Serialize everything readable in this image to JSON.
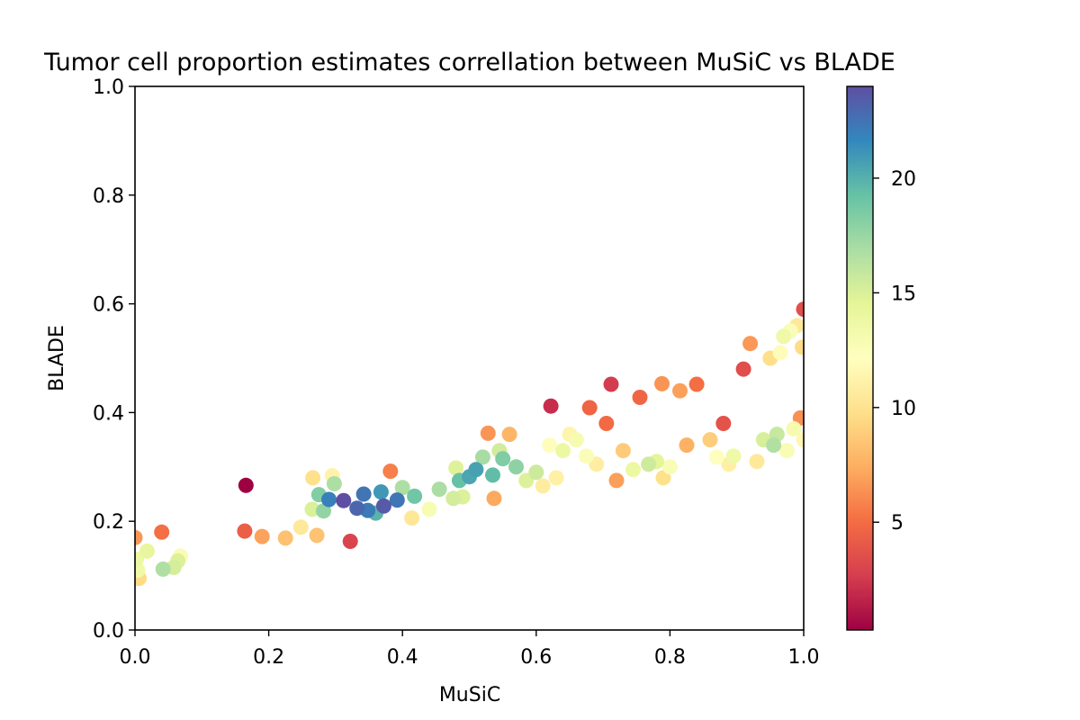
{
  "chart_data": {
    "type": "scatter",
    "title": "Tumor cell proportion estimates correllation between MuSiC vs BLADE",
    "xlabel": "MuSiC",
    "ylabel": "BLADE",
    "xlim": [
      0.0,
      1.0
    ],
    "ylim": [
      0.0,
      1.0
    ],
    "x_ticks": [
      "0.0",
      "0.2",
      "0.4",
      "0.6",
      "0.8",
      "1.0"
    ],
    "y_ticks": [
      "0.0",
      "0.2",
      "0.4",
      "0.6",
      "0.8",
      "1.0"
    ],
    "grid": false,
    "colormap": "Spectral",
    "color_range": [
      0.3,
      24
    ],
    "colorbar_ticks": [
      "5",
      "10",
      "15",
      "20"
    ],
    "colorbar_tick_values": [
      5,
      10,
      15,
      20
    ],
    "points": [
      [
        0.0,
        0.17
      ],
      [
        0.002,
        0.13
      ],
      [
        0.004,
        0.11
      ],
      [
        0.006,
        0.095
      ],
      [
        0.018,
        0.145
      ],
      [
        0.04,
        0.18
      ],
      [
        0.042,
        0.112
      ],
      [
        0.058,
        0.115
      ],
      [
        0.064,
        0.127
      ],
      [
        0.068,
        0.136
      ],
      [
        0.164,
        0.182
      ],
      [
        0.166,
        0.266
      ],
      [
        0.19,
        0.172
      ],
      [
        0.225,
        0.169
      ],
      [
        0.248,
        0.189
      ],
      [
        0.265,
        0.222
      ],
      [
        0.266,
        0.28
      ],
      [
        0.272,
        0.174
      ],
      [
        0.275,
        0.249
      ],
      [
        0.282,
        0.219
      ],
      [
        0.29,
        0.24
      ],
      [
        0.295,
        0.284
      ],
      [
        0.298,
        0.269
      ],
      [
        0.312,
        0.238
      ],
      [
        0.322,
        0.163
      ],
      [
        0.332,
        0.224
      ],
      [
        0.342,
        0.25
      ],
      [
        0.348,
        0.22
      ],
      [
        0.36,
        0.215
      ],
      [
        0.368,
        0.254
      ],
      [
        0.372,
        0.228
      ],
      [
        0.382,
        0.292
      ],
      [
        0.392,
        0.239
      ],
      [
        0.4,
        0.262
      ],
      [
        0.414,
        0.206
      ],
      [
        0.418,
        0.246
      ],
      [
        0.44,
        0.222
      ],
      [
        0.455,
        0.259
      ],
      [
        0.476,
        0.242
      ],
      [
        0.48,
        0.298
      ],
      [
        0.485,
        0.275
      ],
      [
        0.49,
        0.245
      ],
      [
        0.5,
        0.282
      ],
      [
        0.51,
        0.295
      ],
      [
        0.52,
        0.318
      ],
      [
        0.528,
        0.362
      ],
      [
        0.535,
        0.285
      ],
      [
        0.537,
        0.242
      ],
      [
        0.545,
        0.33
      ],
      [
        0.55,
        0.315
      ],
      [
        0.56,
        0.36
      ],
      [
        0.57,
        0.3
      ],
      [
        0.585,
        0.275
      ],
      [
        0.6,
        0.29
      ],
      [
        0.61,
        0.265
      ],
      [
        0.62,
        0.34
      ],
      [
        0.622,
        0.412
      ],
      [
        0.63,
        0.28
      ],
      [
        0.64,
        0.33
      ],
      [
        0.65,
        0.36
      ],
      [
        0.66,
        0.35
      ],
      [
        0.675,
        0.32
      ],
      [
        0.68,
        0.409
      ],
      [
        0.69,
        0.305
      ],
      [
        0.705,
        0.38
      ],
      [
        0.712,
        0.452
      ],
      [
        0.72,
        0.275
      ],
      [
        0.73,
        0.33
      ],
      [
        0.745,
        0.295
      ],
      [
        0.755,
        0.428
      ],
      [
        0.768,
        0.305
      ],
      [
        0.78,
        0.31
      ],
      [
        0.788,
        0.453
      ],
      [
        0.79,
        0.28
      ],
      [
        0.8,
        0.3
      ],
      [
        0.815,
        0.44
      ],
      [
        0.825,
        0.34
      ],
      [
        0.84,
        0.452
      ],
      [
        0.86,
        0.35
      ],
      [
        0.87,
        0.318
      ],
      [
        0.88,
        0.38
      ],
      [
        0.888,
        0.305
      ],
      [
        0.895,
        0.32
      ],
      [
        0.91,
        0.48
      ],
      [
        0.92,
        0.527
      ],
      [
        0.93,
        0.31
      ],
      [
        0.94,
        0.35
      ],
      [
        0.95,
        0.5
      ],
      [
        0.96,
        0.36
      ],
      [
        0.97,
        0.54
      ],
      [
        0.975,
        0.33
      ],
      [
        0.98,
        0.55
      ],
      [
        0.99,
        0.56
      ],
      [
        0.995,
        0.39
      ],
      [
        1.0,
        0.59
      ],
      [
        1.0,
        0.35
      ],
      [
        0.998,
        0.52
      ],
      [
        0.985,
        0.37
      ],
      [
        0.965,
        0.51
      ],
      [
        0.955,
        0.34
      ]
    ]
  }
}
